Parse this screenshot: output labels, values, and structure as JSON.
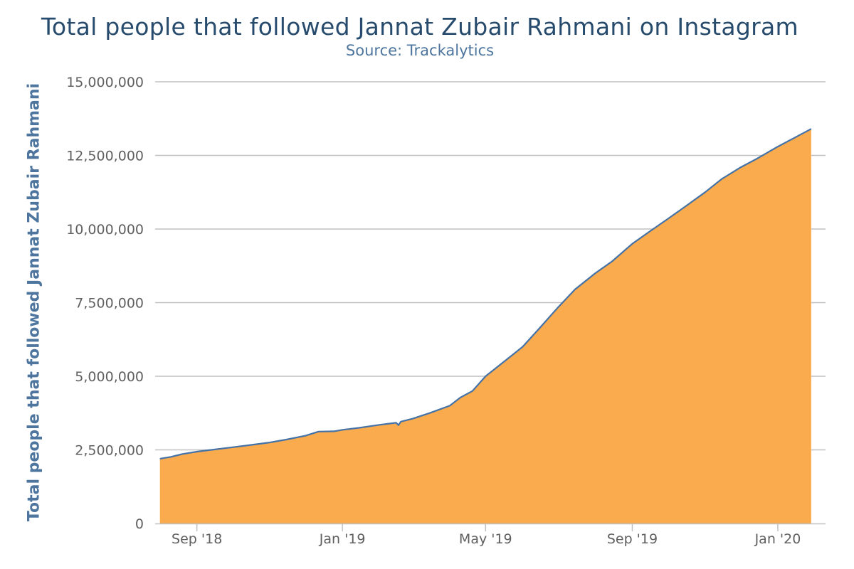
{
  "chart_data": {
    "type": "area",
    "title": "Total people that followed Jannat Zubair Rahmani on Instagram",
    "subtitle": "Source: Trackalytics",
    "ylabel": "Total people that followed Jannat Zubair Rahmani",
    "xlabel": "",
    "ylim": [
      0,
      15000000
    ],
    "y_ticks": [
      0,
      2500000,
      5000000,
      7500000,
      10000000,
      12500000,
      15000000
    ],
    "y_tick_labels": [
      "0",
      "2,500,000",
      "5,000,000",
      "7,500,000",
      "10,000,000",
      "12,500,000",
      "15,000,000"
    ],
    "xlim": [
      "2018-07-28",
      "2020-02-10"
    ],
    "x_ticks": [
      "2018-09-01",
      "2019-01-01",
      "2019-05-01",
      "2019-09-01",
      "2020-01-01"
    ],
    "x_tick_labels": [
      "Sep '18",
      "Jan '19",
      "May '19",
      "Sep '19",
      "Jan '20"
    ],
    "grid": true,
    "legend": false,
    "colors": {
      "fill": "#f9ab4d",
      "line": "#4572a7",
      "grid": "#c0c0c0",
      "title": "#274b6d",
      "subtitle": "#4d759e"
    },
    "series": [
      {
        "points": [
          [
            "2018-08-01",
            2200000
          ],
          [
            "2018-08-10",
            2260000
          ],
          [
            "2018-08-20",
            2360000
          ],
          [
            "2018-09-01",
            2440000
          ],
          [
            "2018-09-15",
            2510000
          ],
          [
            "2018-10-01",
            2590000
          ],
          [
            "2018-10-15",
            2660000
          ],
          [
            "2018-11-01",
            2750000
          ],
          [
            "2018-11-15",
            2850000
          ],
          [
            "2018-12-01",
            2980000
          ],
          [
            "2018-12-12",
            3120000
          ],
          [
            "2018-12-25",
            3130000
          ],
          [
            "2019-01-01",
            3180000
          ],
          [
            "2019-01-15",
            3250000
          ],
          [
            "2019-02-01",
            3350000
          ],
          [
            "2019-02-15",
            3420000
          ],
          [
            "2019-02-17",
            3340000
          ],
          [
            "2019-02-19",
            3460000
          ],
          [
            "2019-03-01",
            3560000
          ],
          [
            "2019-03-15",
            3750000
          ],
          [
            "2019-04-01",
            4000000
          ],
          [
            "2019-04-10",
            4280000
          ],
          [
            "2019-04-20",
            4500000
          ],
          [
            "2019-05-01",
            5000000
          ],
          [
            "2019-05-15",
            5450000
          ],
          [
            "2019-06-01",
            6000000
          ],
          [
            "2019-06-15",
            6620000
          ],
          [
            "2019-07-01",
            7350000
          ],
          [
            "2019-07-15",
            7950000
          ],
          [
            "2019-08-01",
            8500000
          ],
          [
            "2019-08-15",
            8900000
          ],
          [
            "2019-09-01",
            9500000
          ],
          [
            "2019-09-15",
            9900000
          ],
          [
            "2019-10-01",
            10350000
          ],
          [
            "2019-10-15",
            10750000
          ],
          [
            "2019-11-01",
            11250000
          ],
          [
            "2019-11-15",
            11700000
          ],
          [
            "2019-12-01",
            12100000
          ],
          [
            "2019-12-15",
            12400000
          ],
          [
            "2020-01-01",
            12800000
          ],
          [
            "2020-01-15",
            13100000
          ],
          [
            "2020-01-29",
            13400000
          ]
        ]
      }
    ]
  }
}
